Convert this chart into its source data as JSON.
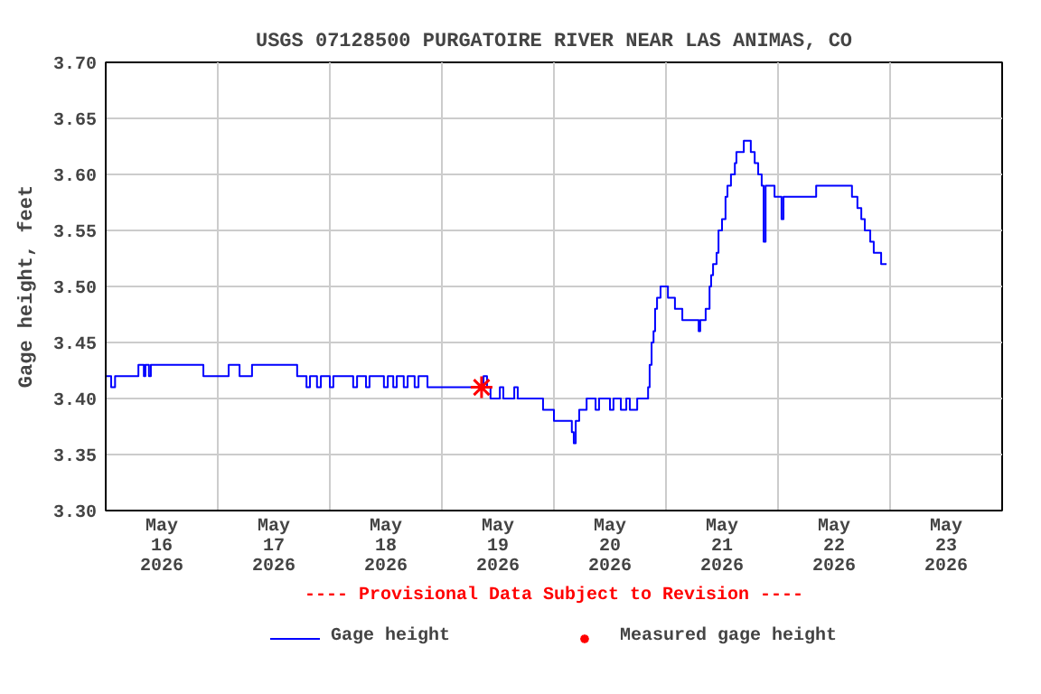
{
  "chart_data": {
    "type": "step",
    "title": "USGS 07128500 PURGATOIRE RIVER NEAR LAS ANIMAS, CO",
    "ylabel": "Gage height, feet",
    "annotations": [
      "---- Provisional Data Subject to Revision ----"
    ],
    "xlim": [
      "2026-05-16T00:00",
      "2026-05-24T00:00"
    ],
    "xticks": [
      {
        "value": "2026-05-16T00:00",
        "label": null
      },
      {
        "value": "2026-05-16T12:00",
        "label": "May\n16\n2026"
      },
      {
        "value": "2026-05-17T00:00",
        "label": null
      },
      {
        "value": "2026-05-17T12:00",
        "label": "May\n17\n2026"
      },
      {
        "value": "2026-05-18T00:00",
        "label": null
      },
      {
        "value": "2026-05-18T12:00",
        "label": "May\n18\n2026"
      },
      {
        "value": "2026-05-19T00:00",
        "label": null
      },
      {
        "value": "2026-05-19T12:00",
        "label": "May\n19\n2026"
      },
      {
        "value": "2026-05-20T00:00",
        "label": null
      },
      {
        "value": "2026-05-20T12:00",
        "label": "May\n20\n2026"
      },
      {
        "value": "2026-05-21T00:00",
        "label": null
      },
      {
        "value": "2026-05-21T12:00",
        "label": "May\n21\n2026"
      },
      {
        "value": "2026-05-22T00:00",
        "label": null
      },
      {
        "value": "2026-05-22T12:00",
        "label": "May\n22\n2026"
      },
      {
        "value": "2026-05-23T00:00",
        "label": null
      },
      {
        "value": "2026-05-23T12:00",
        "label": "May\n23\n2026"
      },
      {
        "value": "2026-05-24T00:00",
        "label": null
      }
    ],
    "ylim": [
      3.3,
      3.7
    ],
    "yticks": [
      {
        "value": 3.3,
        "label": "3.30"
      },
      {
        "value": 3.35,
        "label": "3.35"
      },
      {
        "value": 3.4,
        "label": "3.40"
      },
      {
        "value": 3.45,
        "label": "3.45"
      },
      {
        "value": 3.5,
        "label": "3.50"
      },
      {
        "value": 3.55,
        "label": "3.55"
      },
      {
        "value": 3.6,
        "label": "3.60"
      },
      {
        "value": 3.65,
        "label": "3.65"
      },
      {
        "value": 3.7,
        "label": "3.70"
      }
    ],
    "grid": true,
    "legend": "bottom",
    "series": [
      {
        "name": "Gage height",
        "color": "#0000ff",
        "x": [
          "2026-05-16T00:00",
          "2026-05-16T01:10",
          "2026-05-16T02:00",
          "2026-05-16T07:00",
          "2026-05-16T08:10",
          "2026-05-16T08:30",
          "2026-05-16T09:15",
          "2026-05-16T09:40",
          "2026-05-16T20:55",
          "2026-05-17T02:20",
          "2026-05-17T04:40",
          "2026-05-17T07:20",
          "2026-05-17T17:00",
          "2026-05-17T19:00",
          "2026-05-17T19:45",
          "2026-05-17T21:15",
          "2026-05-17T22:05",
          "2026-05-18T00:00",
          "2026-05-18T00:45",
          "2026-05-18T05:00",
          "2026-05-18T05:50",
          "2026-05-18T07:45",
          "2026-05-18T08:30",
          "2026-05-18T11:35",
          "2026-05-18T12:25",
          "2026-05-18T13:35",
          "2026-05-18T14:20",
          "2026-05-18T15:50",
          "2026-05-18T16:40",
          "2026-05-18T18:10",
          "2026-05-18T19:00",
          "2026-05-18T20:55",
          "2026-05-19T08:55",
          "2026-05-19T09:40",
          "2026-05-19T10:25",
          "2026-05-19T12:25",
          "2026-05-19T13:10",
          "2026-05-19T15:30",
          "2026-05-19T16:15",
          "2026-05-19T21:40",
          "2026-05-20T00:00",
          "2026-05-20T03:50",
          "2026-05-20T04:15",
          "2026-05-20T04:40",
          "2026-05-20T05:25",
          "2026-05-20T07:00",
          "2026-05-20T08:55",
          "2026-05-20T09:40",
          "2026-05-20T12:00",
          "2026-05-20T12:45",
          "2026-05-20T14:20",
          "2026-05-20T15:30",
          "2026-05-20T16:15",
          "2026-05-20T17:50",
          "2026-05-20T20:10",
          "2026-05-20T20:30",
          "2026-05-20T20:55",
          "2026-05-20T21:20",
          "2026-05-20T21:40",
          "2026-05-20T22:05",
          "2026-05-20T22:50",
          "2026-05-21T00:25",
          "2026-05-21T01:55",
          "2026-05-21T03:30",
          "2026-05-21T07:00",
          "2026-05-21T07:20",
          "2026-05-21T08:30",
          "2026-05-21T09:20",
          "2026-05-21T09:40",
          "2026-05-21T10:05",
          "2026-05-21T10:50",
          "2026-05-21T11:15",
          "2026-05-21T12:00",
          "2026-05-21T12:45",
          "2026-05-21T13:10",
          "2026-05-21T13:55",
          "2026-05-21T14:45",
          "2026-05-21T15:05",
          "2026-05-21T16:40",
          "2026-05-21T18:10",
          "2026-05-21T19:00",
          "2026-05-21T19:45",
          "2026-05-21T20:30",
          "2026-05-21T20:55",
          "2026-05-21T21:20",
          "2026-05-21T23:15",
          "2026-05-22T00:45",
          "2026-05-22T01:10",
          "2026-05-22T08:10",
          "2026-05-22T15:50",
          "2026-05-22T17:00",
          "2026-05-22T17:50",
          "2026-05-22T18:35",
          "2026-05-22T19:45",
          "2026-05-22T20:30",
          "2026-05-22T22:05",
          "2026-05-22T23:15"
        ],
        "values": [
          3.42,
          3.41,
          3.42,
          3.43,
          3.42,
          3.43,
          3.42,
          3.43,
          3.42,
          3.43,
          3.42,
          3.43,
          3.42,
          3.41,
          3.42,
          3.41,
          3.42,
          3.41,
          3.42,
          3.41,
          3.42,
          3.41,
          3.42,
          3.41,
          3.42,
          3.41,
          3.42,
          3.41,
          3.42,
          3.41,
          3.42,
          3.41,
          3.42,
          3.41,
          3.4,
          3.41,
          3.4,
          3.41,
          3.4,
          3.39,
          3.38,
          3.37,
          3.36,
          3.38,
          3.39,
          3.4,
          3.39,
          3.4,
          3.39,
          3.4,
          3.39,
          3.4,
          3.39,
          3.4,
          3.41,
          3.43,
          3.45,
          3.46,
          3.48,
          3.49,
          3.5,
          3.49,
          3.48,
          3.47,
          3.46,
          3.47,
          3.48,
          3.5,
          3.51,
          3.52,
          3.53,
          3.55,
          3.56,
          3.58,
          3.59,
          3.6,
          3.61,
          3.62,
          3.63,
          3.62,
          3.61,
          3.6,
          3.59,
          3.54,
          3.59,
          3.58,
          3.56,
          3.58,
          3.59,
          3.58,
          3.57,
          3.56,
          3.55,
          3.54,
          3.53,
          3.52,
          3.52
        ]
      },
      {
        "name": "Measured gage height",
        "type": "scatter",
        "color": "#ff0000",
        "marker": "cross",
        "x": [
          "2026-05-19T08:30"
        ],
        "values": [
          3.41
        ]
      }
    ]
  }
}
